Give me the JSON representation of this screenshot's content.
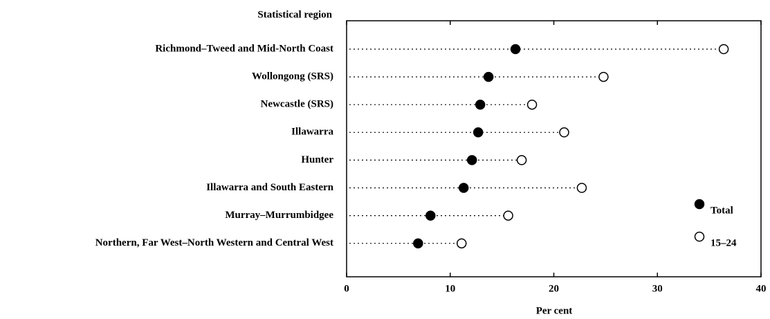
{
  "chart_data": {
    "type": "dot",
    "y_header": "Statistical region",
    "xlabel": "Per cent",
    "categories": [
      "Richmond–Tweed and Mid-North Coast",
      "Wollongong (SRS)",
      "Newcastle (SRS)",
      "Illawarra",
      "Hunter",
      "Illawarra and South Eastern",
      "Murray–Murrumbidgee",
      "Northern, Far West–North Western and Central West"
    ],
    "series": [
      {
        "name": "Total",
        "color": "#000000",
        "values": [
          16.3,
          13.7,
          12.9,
          12.7,
          12.1,
          11.3,
          8.1,
          6.9
        ]
      },
      {
        "name": "15–24",
        "color": "#ffffff",
        "values": [
          36.4,
          24.8,
          17.9,
          21.0,
          16.9,
          22.7,
          15.6,
          11.1
        ]
      }
    ],
    "xlim": [
      0,
      40
    ],
    "xticks": [
      0,
      10,
      20,
      30,
      40
    ],
    "legend": "lower right"
  }
}
